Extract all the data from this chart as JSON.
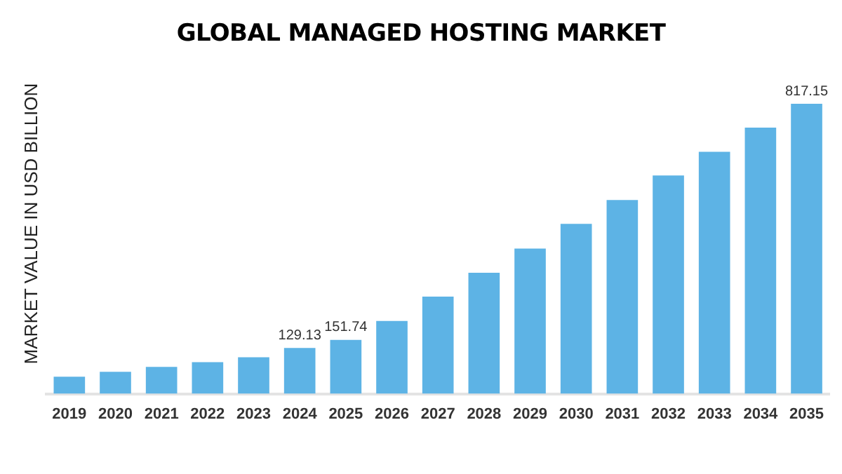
{
  "chart_data": {
    "type": "bar",
    "title": "GLOBAL MANAGED HOSTING MARKET",
    "ylabel": "MARKET VALUE IN USD BILLION",
    "categories": [
      "2019",
      "2020",
      "2021",
      "2022",
      "2023",
      "2024",
      "2025",
      "2026",
      "2027",
      "2028",
      "2029",
      "2030",
      "2031",
      "2032",
      "2033",
      "2034",
      "2035"
    ],
    "values": [
      48,
      62,
      76,
      89,
      103,
      129.13,
      151.74,
      205,
      274,
      341,
      409,
      479,
      546,
      615,
      682,
      750,
      817.15
    ],
    "value_labels": [
      null,
      null,
      null,
      null,
      null,
      "129.13",
      "151.74",
      null,
      null,
      null,
      null,
      null,
      null,
      null,
      null,
      null,
      "817.15"
    ],
    "color": "#5db3e5",
    "grid": false,
    "legend": false
  }
}
